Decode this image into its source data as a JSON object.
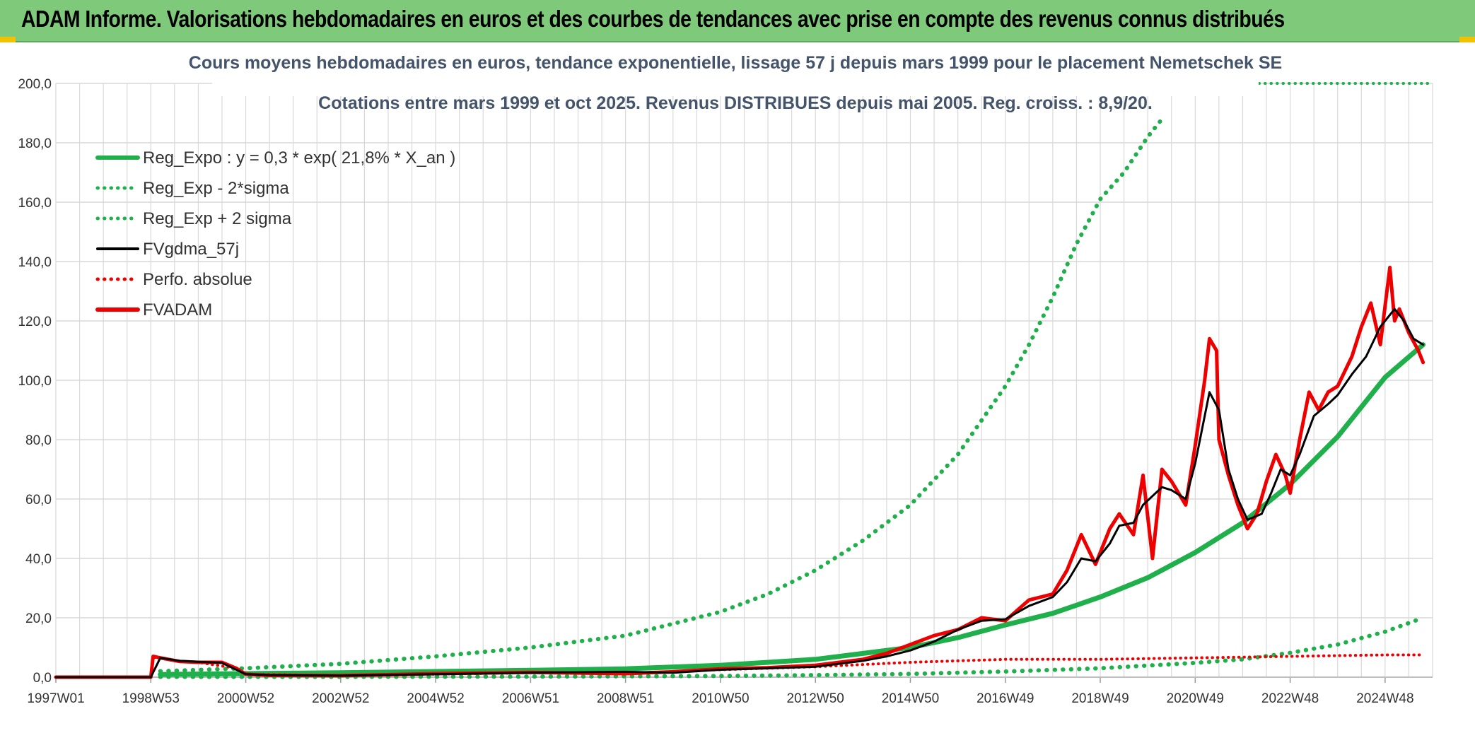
{
  "header": {
    "title": "ADAM Informe. Valorisations hebdomadaires en euros et des courbes de tendances avec prise en compte des revenus connus distribués"
  },
  "colors": {
    "header_bg": "#7ec97a",
    "reg_green": "#1fb04c",
    "red": "#ee0000",
    "black": "#000000",
    "grid": "#d9d9d9",
    "title": "#44546a"
  },
  "chart_data": {
    "type": "line",
    "title": "Cours moyens hebdomadaires en euros, tendance exponentielle, lissage 57 j depuis mars 1999 pour le placement Nemetschek SE",
    "subtitle": "Cotations entre mars 1999 et oct 2025. Revenus DISTRIBUES depuis mai 2005. Reg. croiss. : 8,9/20.",
    "xlabel": "",
    "ylabel": "",
    "ylim": [
      0,
      200
    ],
    "y_ticks": [
      "0,0",
      "20,0",
      "40,0",
      "60,0",
      "80,0",
      "100,0",
      "120,0",
      "140,0",
      "160,0",
      "180,0",
      "200,0"
    ],
    "xlim": [
      1997.0,
      2026.0
    ],
    "x_ticks": [
      {
        "label": "1997W01",
        "x": 1997.0
      },
      {
        "label": "1998W53",
        "x": 1999.0
      },
      {
        "label": "2000W52",
        "x": 2001.0
      },
      {
        "label": "2002W52",
        "x": 2003.0
      },
      {
        "label": "2004W52",
        "x": 2005.0
      },
      {
        "label": "2006W51",
        "x": 2007.0
      },
      {
        "label": "2008W51",
        "x": 2009.0
      },
      {
        "label": "2010W50",
        "x": 2011.0
      },
      {
        "label": "2012W50",
        "x": 2013.0
      },
      {
        "label": "2014W50",
        "x": 2015.0
      },
      {
        "label": "2016W49",
        "x": 2017.0
      },
      {
        "label": "2018W49",
        "x": 2019.0
      },
      {
        "label": "2020W49",
        "x": 2021.0
      },
      {
        "label": "2022W48",
        "x": 2023.0
      },
      {
        "label": "2024W48",
        "x": 2025.0
      }
    ],
    "legend": [
      {
        "label": "Reg_Expo : y = 0,3 * exp( 21,8% *  X_an )",
        "color": "#1fb04c",
        "style": "solid-thick"
      },
      {
        "label": "Reg_Exp - 2*sigma",
        "color": "#1fb04c",
        "style": "dotted"
      },
      {
        "label": "Reg_Exp + 2 sigma",
        "color": "#1fb04c",
        "style": "dotted"
      },
      {
        "label": "FVgdma_57j",
        "color": "#000000",
        "style": "solid"
      },
      {
        "label": "Perfo. absolue",
        "color": "#ee0000",
        "style": "dotted"
      },
      {
        "label": "FVADAM",
        "color": "#ee0000",
        "style": "solid-thick"
      }
    ],
    "series": [
      {
        "name": "Reg_Expo",
        "x": [
          1999.2,
          2001,
          2003,
          2005,
          2007,
          2009,
          2011,
          2013,
          2015,
          2016,
          2017,
          2018,
          2019,
          2020,
          2021,
          2022,
          2023,
          2024,
          2025,
          2025.8
        ],
        "values": [
          0.9,
          1.2,
          1.5,
          1.9,
          2.3,
          2.8,
          4.0,
          6.0,
          10.0,
          13.3,
          17.6,
          21.5,
          27.0,
          33.5,
          42.0,
          52.0,
          65.0,
          81.0,
          101.0,
          112.0
        ]
      },
      {
        "name": "Reg_Exp - 2*sigma",
        "x": [
          1999.2,
          2003,
          2007,
          2011,
          2013,
          2015,
          2017,
          2019,
          2021,
          2022,
          2023,
          2024,
          2025,
          2025.8
        ],
        "values": [
          0.1,
          0.1,
          0.2,
          0.4,
          0.7,
          1.1,
          1.9,
          3.0,
          4.8,
          6.0,
          8.2,
          11.0,
          15.3,
          20.0
        ]
      },
      {
        "name": "Reg_Exp + 2 sigma",
        "x": [
          1999.2,
          2001,
          2003,
          2005,
          2007,
          2009,
          2011,
          2012,
          2013,
          2014,
          2015,
          2016,
          2017,
          2017.5,
          2018,
          2018.5,
          2019,
          2019.5,
          2020,
          2020.3
        ],
        "values": [
          2.0,
          3.0,
          4.5,
          7.0,
          10.0,
          14.0,
          22.0,
          28.0,
          36.0,
          46.0,
          58.0,
          75.0,
          98.0,
          112.0,
          128.0,
          146.0,
          161.0,
          170.0,
          182.0,
          188.0
        ]
      },
      {
        "name": "FVgdma_57j",
        "x": [
          1997,
          1999.0,
          1999.2,
          1999.6,
          2000.0,
          2000.5,
          2001.0,
          2001.5,
          2003,
          2005,
          2007,
          2009,
          2010,
          2011,
          2012,
          2013,
          2014,
          2014.5,
          2015,
          2015.5,
          2016,
          2016.5,
          2017,
          2017.5,
          2018,
          2018.3,
          2018.6,
          2018.9,
          2019.2,
          2019.4,
          2019.7,
          2019.9,
          2020.3,
          2020.5,
          2020.8,
          2021.0,
          2021.3,
          2021.5,
          2021.7,
          2021.9,
          2022.1,
          2022.4,
          2022.6,
          2022.8,
          2023.0,
          2023.2,
          2023.5,
          2023.8,
          2024.0,
          2024.3,
          2024.6,
          2024.9,
          2025.2,
          2025.4,
          2025.6,
          2025.8
        ],
        "values": [
          0,
          0,
          6.5,
          5.5,
          5.2,
          4.8,
          1.0,
          0.7,
          0.5,
          1.0,
          1.5,
          1.8,
          1.5,
          2.5,
          3.0,
          3.5,
          5.5,
          7.0,
          9.0,
          12.0,
          16.0,
          19.0,
          19.5,
          24.0,
          27.0,
          32.0,
          40.0,
          39.0,
          45.0,
          51.0,
          52.0,
          58.0,
          64.0,
          63.0,
          60.0,
          72.0,
          96.0,
          90.0,
          70.0,
          60.0,
          53.0,
          55.0,
          62.0,
          70.0,
          68.0,
          75.0,
          88.0,
          92.0,
          95.0,
          102.0,
          108.0,
          118.0,
          124.0,
          120.0,
          114.0,
          112.0
        ]
      },
      {
        "name": "FVADAM",
        "x": [
          1997,
          1999.0,
          1999.05,
          1999.2,
          1999.6,
          2000.0,
          2000.5,
          2000.8,
          2001.0,
          2001.5,
          2003,
          2005,
          2007,
          2009,
          2010,
          2011,
          2012,
          2013,
          2014,
          2014.5,
          2015,
          2015.5,
          2016,
          2016.5,
          2017,
          2017.5,
          2018,
          2018.3,
          2018.6,
          2018.9,
          2019.2,
          2019.4,
          2019.7,
          2019.9,
          2020.1,
          2020.3,
          2020.5,
          2020.8,
          2021.0,
          2021.2,
          2021.3,
          2021.45,
          2021.5,
          2021.7,
          2021.9,
          2022.1,
          2022.3,
          2022.5,
          2022.7,
          2022.9,
          2023.0,
          2023.2,
          2023.4,
          2023.6,
          2023.8,
          2024.0,
          2024.3,
          2024.5,
          2024.7,
          2024.9,
          2025.1,
          2025.2,
          2025.3,
          2025.5,
          2025.7,
          2025.8
        ],
        "values": [
          0,
          0,
          7.0,
          6.5,
          5.3,
          5.0,
          5.0,
          3.0,
          1.0,
          0.6,
          0.5,
          1.2,
          1.6,
          1.2,
          1.8,
          2.8,
          3.2,
          4.0,
          6.0,
          8.0,
          11.0,
          14.0,
          16.0,
          20.0,
          19.0,
          26.0,
          28.0,
          36.0,
          48.0,
          38.0,
          50.0,
          55.0,
          48.0,
          68.0,
          40.0,
          70.0,
          66.0,
          58.0,
          78.0,
          100.0,
          114.0,
          110.0,
          80.0,
          68.0,
          58.0,
          50.0,
          55.0,
          66.0,
          75.0,
          68.0,
          62.0,
          80.0,
          96.0,
          90.0,
          96.0,
          98.0,
          108.0,
          118.0,
          126.0,
          112.0,
          138.0,
          120.0,
          124.0,
          116.0,
          110.0,
          106.0
        ]
      },
      {
        "name": "Perfo. absolue",
        "x": [
          1997,
          1999.0,
          1999.05,
          1999.6,
          2000.0,
          2000.8,
          2001.0,
          2003,
          2005,
          2007,
          2009,
          2011,
          2013,
          2015,
          2017,
          2019,
          2021,
          2023,
          2025,
          2025.8
        ],
        "values": [
          0,
          0,
          6.8,
          5.2,
          5.0,
          3.0,
          1.0,
          0.5,
          1.0,
          1.5,
          1.3,
          2.5,
          3.5,
          5.0,
          6.0,
          6.0,
          6.5,
          7.0,
          7.5,
          7.5
        ]
      }
    ]
  }
}
